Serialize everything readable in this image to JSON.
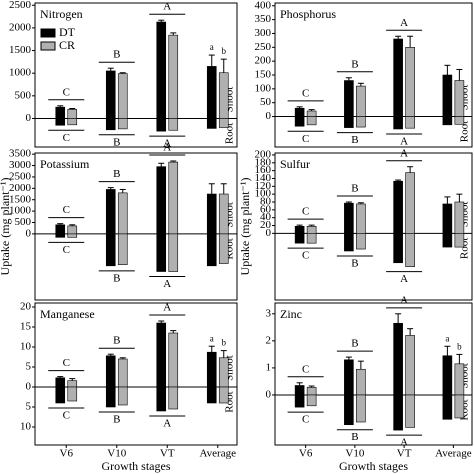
{
  "chart_data": [
    {
      "type": "bar",
      "title": "Nitrogen",
      "ylim": [
        -630,
        2550
      ],
      "yticks": [
        0,
        500,
        1000,
        1500,
        2000,
        2500
      ],
      "side_labels": [
        "Root",
        "Shoot"
      ],
      "series": [
        {
          "name": "DT",
          "color": "#000000",
          "values": [
            250,
            1050,
            2130,
            1150
          ],
          "errors": [
            30,
            60,
            40,
            250
          ],
          "root_values": [
            -150,
            -250,
            -280,
            -220
          ]
        },
        {
          "name": "CR",
          "color": "#b0b0b0",
          "values": [
            200,
            990,
            1840,
            1010
          ],
          "errors": [
            20,
            20,
            50,
            300
          ],
          "root_values": [
            -140,
            -230,
            -260,
            -200
          ]
        }
      ],
      "shoot_letters": [
        "C",
        "B",
        "A",
        null
      ],
      "root_letters": [
        "C",
        "B",
        "A",
        null
      ],
      "average_letters": [
        "a",
        "b"
      ]
    },
    {
      "type": "bar",
      "title": "Phosphorus",
      "ylim": [
        -110,
        410
      ],
      "yticks": [
        0,
        50,
        100,
        150,
        200,
        250,
        300,
        350,
        400
      ],
      "side_labels": [
        "Root",
        "Shoot"
      ],
      "series": [
        {
          "color": "#000000",
          "values": [
            30,
            130,
            280,
            150
          ],
          "errors": [
            5,
            10,
            10,
            35
          ],
          "root_values": [
            -35,
            -40,
            -45,
            -30
          ]
        },
        {
          "color": "#b0b0b0",
          "values": [
            20,
            110,
            250,
            130
          ],
          "errors": [
            5,
            10,
            40,
            40
          ],
          "root_values": [
            -30,
            -38,
            -42,
            -28
          ]
        }
      ],
      "shoot_letters": [
        "C",
        "B",
        "A",
        null
      ],
      "root_letters": [
        "C",
        "B",
        "A",
        null
      ]
    },
    {
      "type": "bar",
      "title": "Potassium",
      "ylabel": "Uptake (mg plant⁻¹)",
      "ylim": [
        -2900,
        3550
      ],
      "yticks": [
        0,
        500,
        1000,
        1500,
        2000,
        2500,
        3000,
        3500
      ],
      "side_labels": [
        "Root",
        "Shoot"
      ],
      "series": [
        {
          "color": "#000000",
          "values": [
            400,
            1950,
            2950,
            1750
          ],
          "errors": [
            50,
            80,
            150,
            450
          ],
          "root_values": [
            -150,
            -1400,
            -1650,
            -1400
          ]
        },
        {
          "color": "#b0b0b0",
          "values": [
            350,
            1800,
            3150,
            1750
          ],
          "errors": [
            50,
            150,
            50,
            450
          ],
          "root_values": [
            -150,
            -1350,
            -1650,
            -1300
          ]
        }
      ],
      "shoot_letters": [
        "C",
        "B",
        "A",
        null
      ],
      "root_letters": [
        "C",
        "B",
        "A",
        null
      ]
    },
    {
      "type": "bar",
      "title": "Sulfur",
      "ylabel": "Uptake (mg plant⁻¹)",
      "ylim": [
        -170,
        205
      ],
      "yticks": [
        0,
        20,
        40,
        60,
        80,
        100,
        120,
        140,
        160,
        180,
        200
      ],
      "side_labels": [
        "Root",
        "Shoot"
      ],
      "series": [
        {
          "color": "#000000",
          "values": [
            18,
            77,
            133,
            75
          ],
          "errors": [
            3,
            3,
            3,
            18
          ],
          "root_values": [
            -25,
            -45,
            -75,
            -35
          ]
        },
        {
          "color": "#b0b0b0",
          "values": [
            18,
            75,
            155,
            80
          ],
          "errors": [
            3,
            3,
            15,
            20
          ],
          "root_values": [
            -25,
            -40,
            -85,
            -35
          ]
        }
      ],
      "shoot_letters": [
        "C",
        "B",
        "A",
        null
      ],
      "root_letters": [
        "C",
        "B",
        "A",
        null
      ]
    },
    {
      "type": "bar",
      "title": "Manganese",
      "xlabel": "Growth stages",
      "categories": [
        "V6",
        "V10",
        "VT",
        "Average"
      ],
      "ylim": [
        -14.5,
        21
      ],
      "yticks": [
        {
          "value": -10,
          "label": "10"
        },
        {
          "value": -5,
          "label": "5"
        },
        0,
        5,
        10,
        15,
        20
      ],
      "side_labels": [
        "Root",
        "Shoot"
      ],
      "series": [
        {
          "color": "#000000",
          "values": [
            2.3,
            7.8,
            16,
            8.7
          ],
          "errors": [
            0.3,
            0.4,
            0.5,
            1.5
          ],
          "root_values": [
            -4,
            -5,
            -6,
            -4
          ]
        },
        {
          "color": "#b0b0b0",
          "values": [
            1.6,
            7,
            13.5,
            7.3
          ],
          "errors": [
            0.5,
            0.3,
            0.6,
            1.8
          ],
          "root_values": [
            -3.5,
            -4.5,
            -5.5,
            -4
          ]
        }
      ],
      "shoot_letters": [
        "C",
        "B",
        "A",
        null
      ],
      "root_letters": [
        "C",
        "B",
        "A",
        null
      ],
      "average_letters": [
        "a",
        "b"
      ]
    },
    {
      "type": "bar",
      "title": "Zinc",
      "xlabel": "Growth stages",
      "categories": [
        "V6",
        "V10",
        "VT",
        "Average"
      ],
      "ylim": [
        -1.85,
        3.4
      ],
      "yticks": [
        0,
        1,
        2,
        3
      ],
      "side_labels": [
        "Root",
        "Shoot"
      ],
      "series": [
        {
          "color": "#000000",
          "values": [
            0.35,
            1.3,
            2.65,
            1.45
          ],
          "errors": [
            0.1,
            0.1,
            0.35,
            0.35
          ],
          "root_values": [
            -0.45,
            -1.1,
            -1.3,
            -0.9
          ]
        },
        {
          "color": "#b0b0b0",
          "values": [
            0.28,
            0.95,
            2.2,
            1.15
          ],
          "errors": [
            0.05,
            0.3,
            0.25,
            0.35
          ],
          "root_values": [
            -0.4,
            -1.0,
            -1.2,
            -0.85
          ]
        }
      ],
      "shoot_letters": [
        "C",
        "B",
        "A",
        null
      ],
      "root_letters": [
        "C",
        "B",
        "A",
        null
      ],
      "average_letters": [
        "a",
        "b"
      ]
    }
  ]
}
